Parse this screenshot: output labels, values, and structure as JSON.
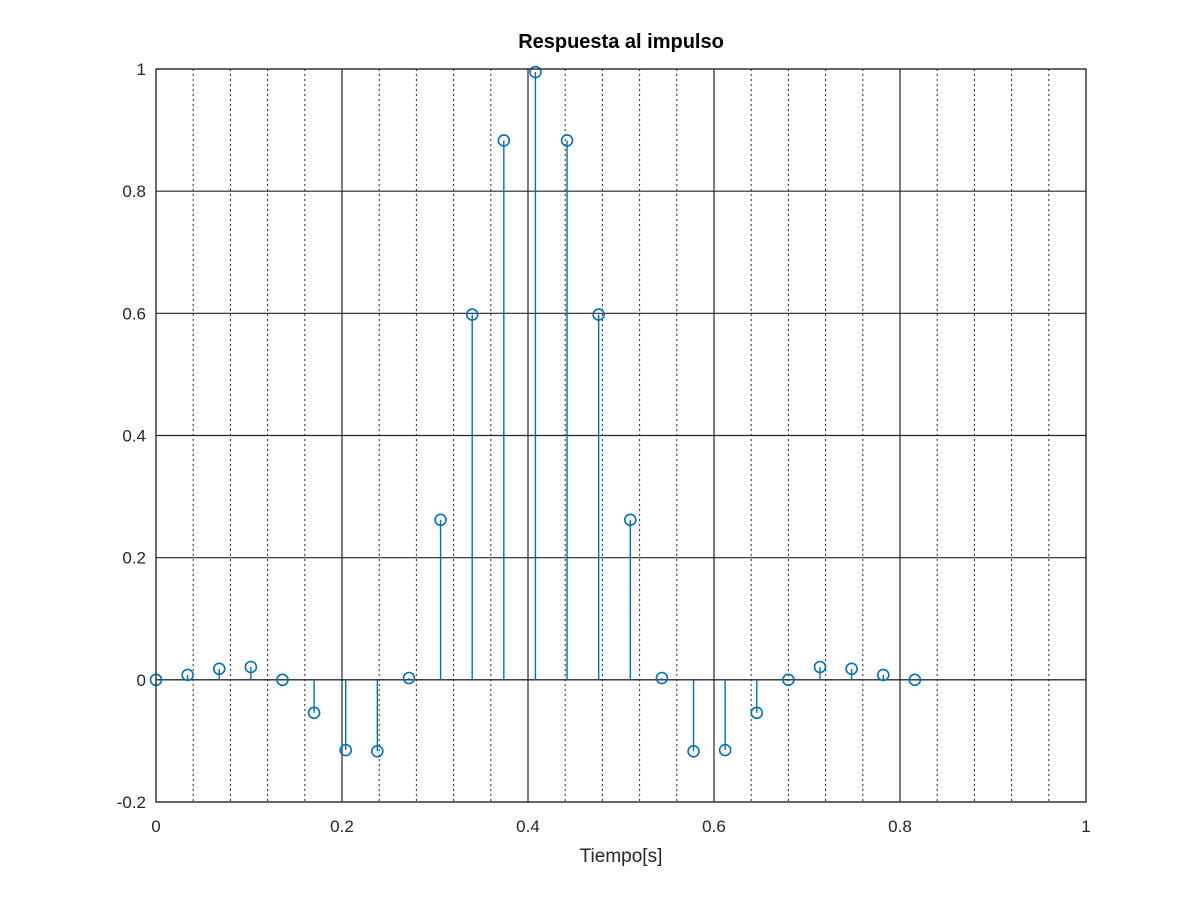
{
  "chart_data": {
    "type": "stem",
    "title": "Respuesta al impulso",
    "xlabel": "Tiempo[s]",
    "ylabel": "",
    "xlim": [
      0,
      1
    ],
    "ylim": [
      -0.2,
      1
    ],
    "xticks": [
      "0",
      "0.2",
      "0.4",
      "0.6",
      "0.8",
      "1"
    ],
    "yticks": [
      "-0.2",
      "0",
      "0.2",
      "0.4",
      "0.6",
      "0.8",
      "1"
    ],
    "grid": true,
    "minor_grid_x": true,
    "color": "#0072BD",
    "x": [
      0,
      0.034,
      0.068,
      0.102,
      0.136,
      0.17,
      0.204,
      0.238,
      0.272,
      0.306,
      0.34,
      0.374,
      0.408,
      0.442,
      0.476,
      0.51,
      0.544,
      0.578,
      0.612,
      0.646,
      0.68,
      0.714,
      0.748,
      0.782,
      0.816
    ],
    "values": [
      0.0,
      0.008,
      0.018,
      0.021,
      0.0,
      -0.054,
      -0.115,
      -0.117,
      0.003,
      0.262,
      0.598,
      0.883,
      0.995,
      0.883,
      0.598,
      0.262,
      0.003,
      -0.117,
      -0.115,
      -0.054,
      0.0,
      0.021,
      0.018,
      0.008,
      0.0
    ]
  }
}
